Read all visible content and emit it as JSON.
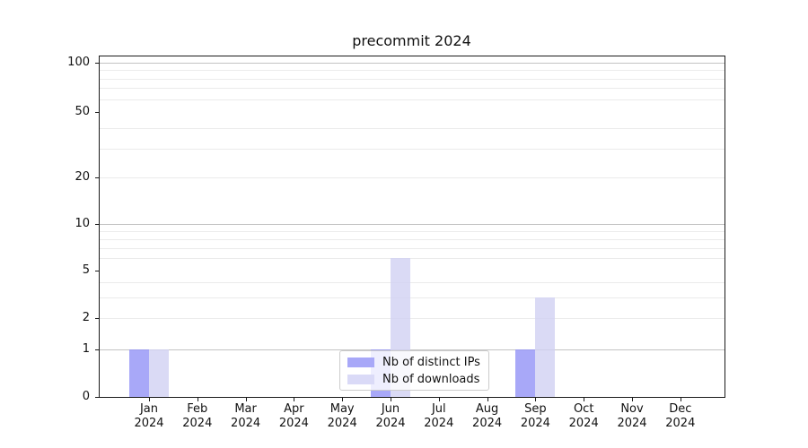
{
  "chart_data": {
    "type": "bar",
    "title": "precommit 2024",
    "categories": [
      "Jan",
      "Feb",
      "Mar",
      "Apr",
      "May",
      "Jun",
      "Jul",
      "Aug",
      "Sep",
      "Oct",
      "Nov",
      "Dec"
    ],
    "category_year": "2024",
    "series": [
      {
        "name": "Nb of distinct IPs",
        "color_fill": "rgba(146,146,246,0.8)",
        "color_solid": "#a8a8f8",
        "values": [
          1,
          0,
          0,
          0,
          0,
          1,
          0,
          0,
          1,
          0,
          0,
          0
        ]
      },
      {
        "name": "Nb of downloads",
        "color_fill": "rgba(209,209,243,0.8)",
        "color_solid": "#dadaf7",
        "values": [
          1,
          0,
          0,
          0,
          0,
          6,
          0,
          0,
          3,
          0,
          0,
          0
        ]
      }
    ],
    "xlabel": "",
    "ylabel": "",
    "y_axis": {
      "scale": "log-like with zero baseline",
      "tick_labels": [
        "0",
        "1",
        "2",
        "5",
        "10",
        "20",
        "50",
        "100"
      ],
      "tick_values": [
        0,
        1,
        2,
        5,
        10,
        20,
        50,
        100
      ],
      "major_grid_values": [
        1,
        10,
        100
      ],
      "minor_grid_values": [
        2,
        3,
        4,
        6,
        7,
        8,
        9,
        20,
        30,
        40,
        60,
        70,
        80,
        90
      ]
    },
    "grid": true,
    "legend": {
      "position": "inside lower center",
      "entries": [
        "Nb of distinct IPs",
        "Nb of downloads"
      ]
    }
  }
}
